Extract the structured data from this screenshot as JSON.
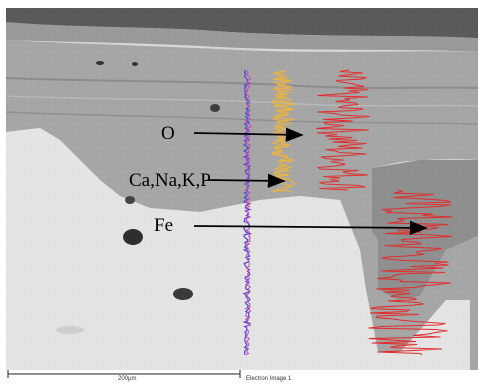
{
  "image": {
    "type": "SEM backscattered electron image with EDS line scan overlay",
    "scale_bar": "200µm",
    "image_label": "Electron Image 1"
  },
  "annotations": [
    {
      "id": "o",
      "text": "O"
    },
    {
      "id": "ca",
      "text": "Ca,Na,K,P"
    },
    {
      "id": "fe",
      "text": "Fe"
    }
  ],
  "colors": {
    "oxygen_trace": "#e6b24a",
    "iron_trace": "#e02d2d",
    "scan_line_blue": "#4a4ad8",
    "scan_line_magenta": "#c04ab8",
    "arrow": "#000000"
  }
}
